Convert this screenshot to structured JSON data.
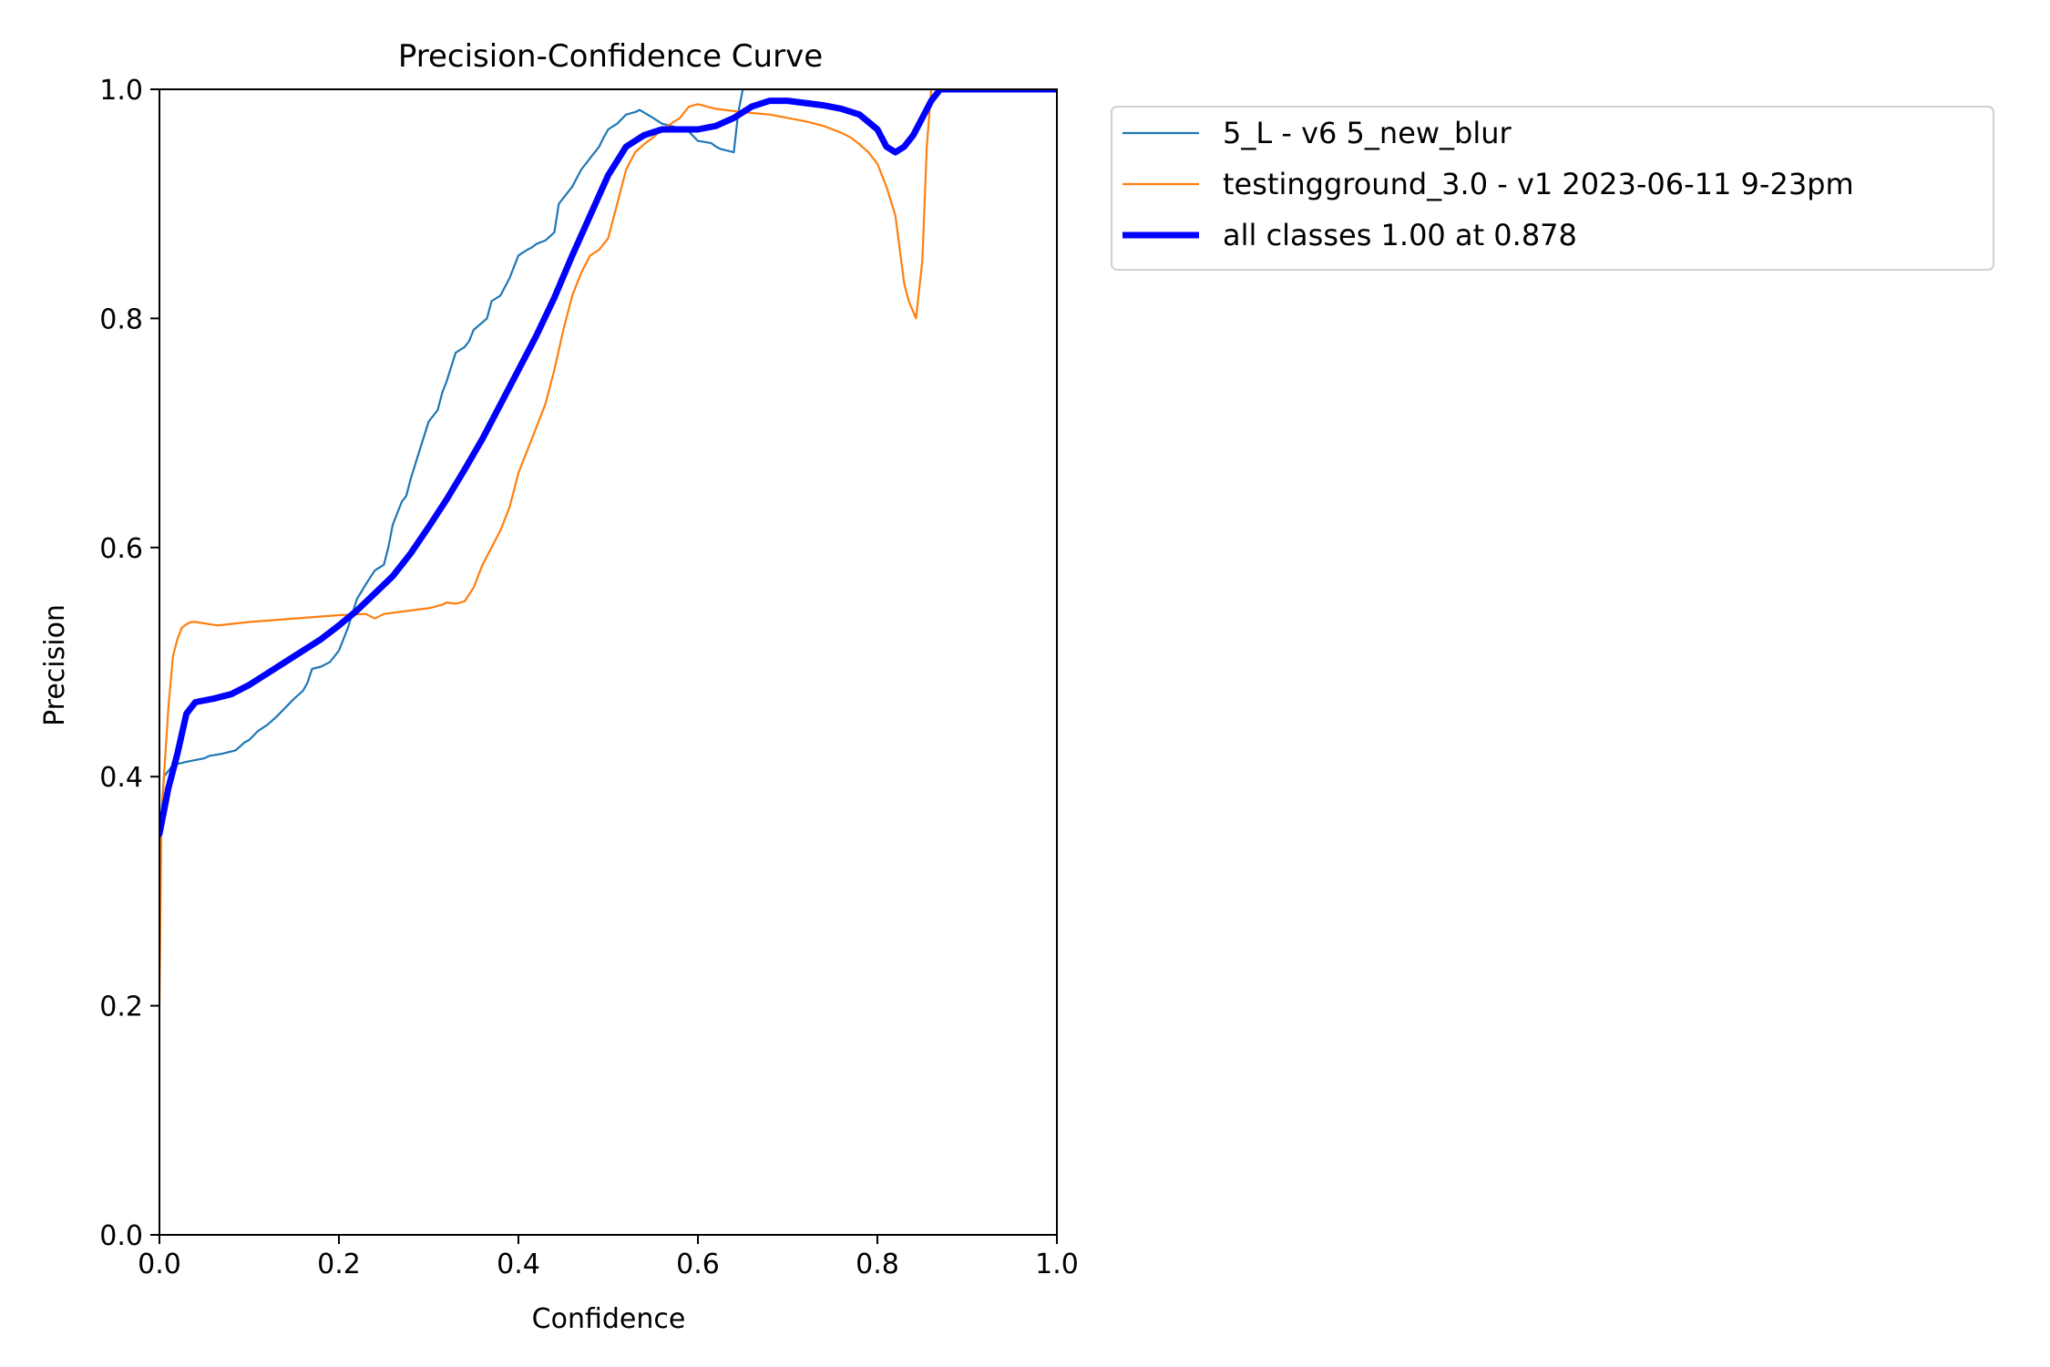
{
  "chart_data": {
    "type": "line",
    "title": "Precision-Confidence Curve",
    "xlabel": "Confidence",
    "ylabel": "Precision",
    "xlim": [
      0,
      1
    ],
    "ylim": [
      0,
      1
    ],
    "xticks": [
      0.0,
      0.2,
      0.4,
      0.6,
      0.8,
      1.0
    ],
    "yticks": [
      0.0,
      0.2,
      0.4,
      0.6,
      0.8,
      1.0
    ],
    "xtick_labels": [
      "0.0",
      "0.2",
      "0.4",
      "0.6",
      "0.8",
      "1.0"
    ],
    "ytick_labels": [
      "0.0",
      "0.2",
      "0.4",
      "0.6",
      "0.8",
      "1.0"
    ],
    "grid": false,
    "legend_position": "outside-top-right",
    "series": [
      {
        "name": "5_L - v6 5_new_blur",
        "color": "#1f77b4",
        "x": [
          0.0,
          0.005,
          0.015,
          0.03,
          0.05,
          0.055,
          0.07,
          0.085,
          0.095,
          0.1,
          0.11,
          0.12,
          0.13,
          0.14,
          0.15,
          0.16,
          0.165,
          0.17,
          0.18,
          0.19,
          0.2,
          0.21,
          0.22,
          0.23,
          0.24,
          0.25,
          0.255,
          0.26,
          0.265,
          0.27,
          0.275,
          0.28,
          0.29,
          0.3,
          0.31,
          0.315,
          0.32,
          0.33,
          0.34,
          0.345,
          0.35,
          0.365,
          0.37,
          0.38,
          0.39,
          0.4,
          0.41,
          0.415,
          0.42,
          0.43,
          0.44,
          0.445,
          0.46,
          0.47,
          0.48,
          0.49,
          0.495,
          0.5,
          0.51,
          0.52,
          0.53,
          0.535,
          0.55,
          0.56,
          0.575,
          0.585,
          0.59,
          0.6,
          0.615,
          0.62,
          0.625,
          0.64,
          0.645,
          0.65,
          0.7,
          0.8,
          0.9,
          1.0
        ],
        "y": [
          0.34,
          0.4,
          0.41,
          0.413,
          0.416,
          0.418,
          0.42,
          0.423,
          0.43,
          0.432,
          0.44,
          0.445,
          0.452,
          0.46,
          0.468,
          0.475,
          0.482,
          0.494,
          0.496,
          0.5,
          0.51,
          0.53,
          0.555,
          0.568,
          0.58,
          0.585,
          0.6,
          0.62,
          0.63,
          0.64,
          0.645,
          0.66,
          0.685,
          0.71,
          0.72,
          0.735,
          0.745,
          0.77,
          0.775,
          0.78,
          0.79,
          0.8,
          0.815,
          0.82,
          0.835,
          0.855,
          0.86,
          0.862,
          0.865,
          0.868,
          0.875,
          0.9,
          0.915,
          0.93,
          0.94,
          0.95,
          0.958,
          0.965,
          0.97,
          0.978,
          0.98,
          0.982,
          0.975,
          0.97,
          0.967,
          0.965,
          0.963,
          0.955,
          0.953,
          0.95,
          0.948,
          0.945,
          0.98,
          1.0,
          1.0,
          1.0,
          1.0,
          1.0
        ]
      },
      {
        "name": "testingground_3.0 - v1 2023-06-11 9-23pm",
        "color": "#ff7f0e",
        "x": [
          0.0,
          0.002,
          0.005,
          0.01,
          0.015,
          0.02,
          0.025,
          0.03,
          0.035,
          0.04,
          0.065,
          0.1,
          0.2,
          0.23,
          0.24,
          0.25,
          0.28,
          0.3,
          0.315,
          0.32,
          0.33,
          0.34,
          0.35,
          0.355,
          0.36,
          0.37,
          0.38,
          0.385,
          0.39,
          0.4,
          0.41,
          0.415,
          0.42,
          0.43,
          0.44,
          0.45,
          0.46,
          0.47,
          0.48,
          0.49,
          0.5,
          0.51,
          0.52,
          0.53,
          0.54,
          0.55,
          0.56,
          0.58,
          0.59,
          0.6,
          0.61,
          0.62,
          0.63,
          0.64,
          0.65,
          0.68,
          0.7,
          0.72,
          0.74,
          0.75,
          0.76,
          0.77,
          0.78,
          0.79,
          0.8,
          0.81,
          0.82,
          0.825,
          0.83,
          0.835,
          0.843,
          0.85,
          0.855,
          0.86,
          1.0
        ],
        "y": [
          0.2,
          0.35,
          0.4,
          0.46,
          0.505,
          0.52,
          0.53,
          0.533,
          0.535,
          0.535,
          0.532,
          0.535,
          0.541,
          0.542,
          0.538,
          0.542,
          0.545,
          0.547,
          0.55,
          0.552,
          0.551,
          0.553,
          0.565,
          0.575,
          0.585,
          0.6,
          0.615,
          0.625,
          0.635,
          0.665,
          0.685,
          0.695,
          0.705,
          0.725,
          0.755,
          0.79,
          0.82,
          0.84,
          0.855,
          0.86,
          0.87,
          0.9,
          0.93,
          0.945,
          0.952,
          0.958,
          0.965,
          0.975,
          0.985,
          0.987,
          0.985,
          0.983,
          0.982,
          0.981,
          0.98,
          0.978,
          0.975,
          0.972,
          0.968,
          0.965,
          0.962,
          0.958,
          0.952,
          0.945,
          0.935,
          0.915,
          0.89,
          0.86,
          0.83,
          0.815,
          0.8,
          0.85,
          0.95,
          1.0,
          1.0
        ]
      },
      {
        "name": "all classes 1.00 at 0.878",
        "color": "#0000ff",
        "x": [
          0.0,
          0.01,
          0.02,
          0.03,
          0.04,
          0.06,
          0.08,
          0.1,
          0.12,
          0.14,
          0.16,
          0.18,
          0.2,
          0.22,
          0.24,
          0.26,
          0.28,
          0.3,
          0.32,
          0.34,
          0.36,
          0.38,
          0.4,
          0.42,
          0.44,
          0.46,
          0.48,
          0.5,
          0.52,
          0.54,
          0.56,
          0.58,
          0.6,
          0.62,
          0.64,
          0.66,
          0.68,
          0.7,
          0.72,
          0.74,
          0.76,
          0.78,
          0.8,
          0.81,
          0.82,
          0.83,
          0.84,
          0.85,
          0.86,
          0.87,
          0.878,
          0.9,
          0.95,
          1.0
        ],
        "y": [
          0.35,
          0.39,
          0.42,
          0.455,
          0.465,
          0.468,
          0.472,
          0.48,
          0.49,
          0.5,
          0.51,
          0.52,
          0.532,
          0.545,
          0.56,
          0.575,
          0.595,
          0.618,
          0.642,
          0.668,
          0.695,
          0.725,
          0.755,
          0.785,
          0.818,
          0.855,
          0.89,
          0.925,
          0.95,
          0.96,
          0.965,
          0.965,
          0.965,
          0.968,
          0.975,
          0.985,
          0.99,
          0.99,
          0.988,
          0.986,
          0.983,
          0.978,
          0.965,
          0.95,
          0.945,
          0.95,
          0.96,
          0.975,
          0.99,
          1.0,
          1.0,
          1.0,
          1.0,
          1.0
        ]
      }
    ],
    "legend": [
      "5_L - v6 5_new_blur",
      "testingground_3.0 - v1 2023-06-11 9-23pm",
      "all classes 1.00 at 0.878"
    ]
  }
}
